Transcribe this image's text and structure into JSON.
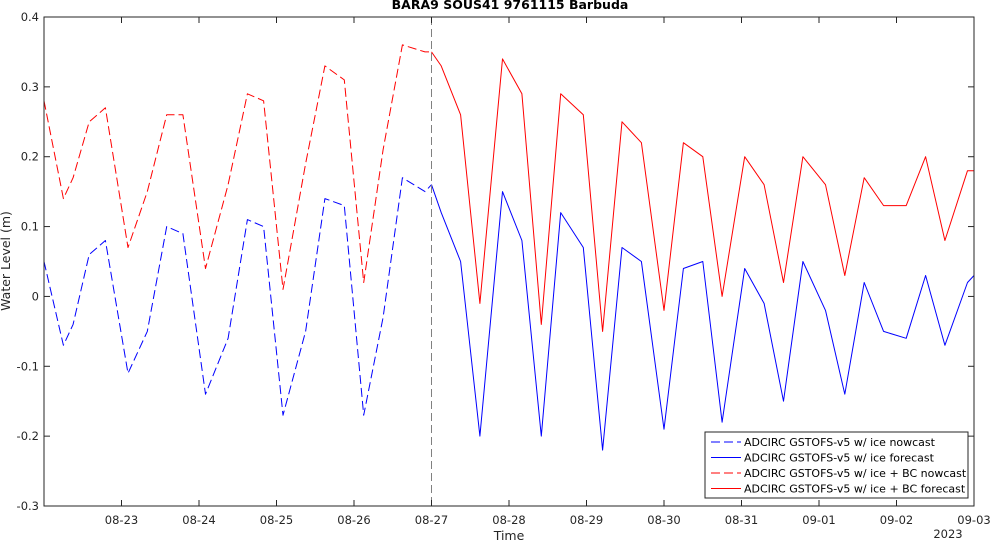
{
  "chart_data": {
    "type": "line",
    "title": "BARA9 SOUS41 9761115 Barbuda",
    "xlabel": "Time",
    "ylabel": "Water Level (m)",
    "xlim": [
      "2023-08-22T00:00",
      "2023-09-03T00:00"
    ],
    "ylim": [
      -0.3,
      0.4
    ],
    "x_ticks": [
      "08-23",
      "08-24",
      "08-25",
      "08-26",
      "08-27",
      "08-28",
      "08-29",
      "08-30",
      "08-31",
      "09-01",
      "09-02",
      "09-03"
    ],
    "x_tick_values": [
      "2023-08-23",
      "2023-08-24",
      "2023-08-25",
      "2023-08-26",
      "2023-08-27",
      "2023-08-28",
      "2023-08-29",
      "2023-08-30",
      "2023-08-31",
      "2023-09-01",
      "2023-09-02",
      "2023-09-03"
    ],
    "x_extra_label": "2023",
    "y_ticks": [
      -0.3,
      -0.2,
      -0.1,
      0,
      0.1,
      0.2,
      0.3,
      0.4
    ],
    "y_tick_labels": [
      "-0.3",
      "-0.2",
      "-0.1",
      "0",
      "0.1",
      "0.2",
      "0.3",
      "0.4"
    ],
    "nowcast_forecast_boundary": "2023-08-27T00:00",
    "grid": false,
    "legend_position": "bottom-right",
    "series": [
      {
        "name": "ADCIRC GSTOFS-v5 w/ ice nowcast",
        "color": "#0000ff",
        "dash": true,
        "x": [
          "2023-08-22T00:00",
          "2023-08-22T06:00",
          "2023-08-22T09:00",
          "2023-08-22T14:00",
          "2023-08-22T19:00",
          "2023-08-23T02:00",
          "2023-08-23T08:00",
          "2023-08-23T14:00",
          "2023-08-23T19:00",
          "2023-08-24T02:00",
          "2023-08-24T09:00",
          "2023-08-24T15:00",
          "2023-08-24T20:00",
          "2023-08-25T02:00",
          "2023-08-25T09:00",
          "2023-08-25T15:00",
          "2023-08-25T21:00",
          "2023-08-26T03:00",
          "2023-08-26T09:00",
          "2023-08-26T15:00",
          "2023-08-26T22:00",
          "2023-08-27T00:00"
        ],
        "y": [
          0.05,
          -0.07,
          -0.04,
          0.06,
          0.08,
          -0.11,
          -0.05,
          0.1,
          0.09,
          -0.14,
          -0.06,
          0.11,
          0.1,
          -0.17,
          -0.05,
          0.14,
          0.13,
          -0.17,
          -0.03,
          0.17,
          0.15,
          0.16
        ]
      },
      {
        "name": "ADCIRC GSTOFS-v5 w/ ice forecast",
        "color": "#0000ff",
        "dash": false,
        "x": [
          "2023-08-27T00:00",
          "2023-08-27T03:00",
          "2023-08-27T09:00",
          "2023-08-27T15:00",
          "2023-08-27T22:00",
          "2023-08-28T04:00",
          "2023-08-28T10:00",
          "2023-08-28T16:00",
          "2023-08-28T23:00",
          "2023-08-29T05:00",
          "2023-08-29T11:00",
          "2023-08-29T17:00",
          "2023-08-30T00:00",
          "2023-08-30T06:00",
          "2023-08-30T12:00",
          "2023-08-30T18:00",
          "2023-08-31T01:00",
          "2023-08-31T07:00",
          "2023-08-31T13:00",
          "2023-08-31T19:00",
          "2023-09-01T02:00",
          "2023-09-01T08:00",
          "2023-09-01T14:00",
          "2023-09-01T20:00",
          "2023-09-02T03:00",
          "2023-09-02T09:00",
          "2023-09-02T15:00",
          "2023-09-02T22:00",
          "2023-09-03T00:00"
        ],
        "y": [
          0.16,
          0.12,
          0.05,
          -0.2,
          0.15,
          0.08,
          -0.2,
          0.12,
          0.07,
          -0.22,
          0.07,
          0.05,
          -0.19,
          0.04,
          0.05,
          -0.18,
          0.04,
          -0.01,
          -0.15,
          0.05,
          -0.02,
          -0.14,
          0.02,
          -0.05,
          -0.06,
          0.03,
          -0.07,
          0.02,
          0.03
        ]
      },
      {
        "name": "ADCIRC GSTOFS-v5 w/ ice + BC nowcast",
        "color": "#ff0000",
        "dash": true,
        "x": [
          "2023-08-22T00:00",
          "2023-08-22T06:00",
          "2023-08-22T09:00",
          "2023-08-22T14:00",
          "2023-08-22T19:00",
          "2023-08-23T02:00",
          "2023-08-23T08:00",
          "2023-08-23T14:00",
          "2023-08-23T19:00",
          "2023-08-24T02:00",
          "2023-08-24T09:00",
          "2023-08-24T15:00",
          "2023-08-24T20:00",
          "2023-08-25T02:00",
          "2023-08-25T09:00",
          "2023-08-25T15:00",
          "2023-08-25T21:00",
          "2023-08-26T03:00",
          "2023-08-26T09:00",
          "2023-08-26T15:00",
          "2023-08-26T22:00",
          "2023-08-27T00:00"
        ],
        "y": [
          0.28,
          0.14,
          0.17,
          0.25,
          0.27,
          0.07,
          0.15,
          0.26,
          0.26,
          0.04,
          0.16,
          0.29,
          0.28,
          0.01,
          0.19,
          0.33,
          0.31,
          0.02,
          0.21,
          0.36,
          0.35,
          0.35
        ]
      },
      {
        "name": "ADCIRC GSTOFS-v5 w/ ice + BC forecast",
        "color": "#ff0000",
        "dash": false,
        "x": [
          "2023-08-27T00:00",
          "2023-08-27T03:00",
          "2023-08-27T09:00",
          "2023-08-27T15:00",
          "2023-08-27T22:00",
          "2023-08-28T04:00",
          "2023-08-28T10:00",
          "2023-08-28T16:00",
          "2023-08-28T23:00",
          "2023-08-29T05:00",
          "2023-08-29T11:00",
          "2023-08-29T17:00",
          "2023-08-30T00:00",
          "2023-08-30T06:00",
          "2023-08-30T12:00",
          "2023-08-30T18:00",
          "2023-08-31T01:00",
          "2023-08-31T07:00",
          "2023-08-31T13:00",
          "2023-08-31T19:00",
          "2023-09-01T02:00",
          "2023-09-01T08:00",
          "2023-09-01T14:00",
          "2023-09-01T20:00",
          "2023-09-02T03:00",
          "2023-09-02T09:00",
          "2023-09-02T15:00",
          "2023-09-02T22:00",
          "2023-09-03T00:00"
        ],
        "y": [
          0.35,
          0.33,
          0.26,
          -0.01,
          0.34,
          0.29,
          -0.04,
          0.29,
          0.26,
          -0.05,
          0.25,
          0.22,
          -0.02,
          0.22,
          0.2,
          0.0,
          0.2,
          0.16,
          0.02,
          0.2,
          0.16,
          0.03,
          0.17,
          0.13,
          0.13,
          0.2,
          0.08,
          0.18,
          0.18
        ]
      }
    ]
  }
}
